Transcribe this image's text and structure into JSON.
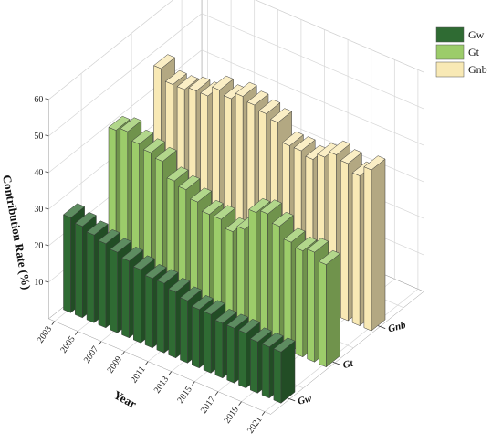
{
  "chart_data": {
    "type": "bar",
    "subtype": "3d-bar",
    "title": "",
    "ylabel": "Contribution Rate (%)",
    "xlabel": "Year",
    "zlabel": "",
    "ylim": [
      0,
      60
    ],
    "yticks": [
      10,
      20,
      30,
      40,
      50,
      60
    ],
    "xticks": [
      "2003",
      "2005",
      "2007",
      "2009",
      "2011",
      "2013",
      "2015",
      "2017",
      "2019",
      "2021"
    ],
    "categories": [
      "2003",
      "2004",
      "2005",
      "2006",
      "2007",
      "2008",
      "2009",
      "2010",
      "2011",
      "2012",
      "2013",
      "2014",
      "2015",
      "2016",
      "2017",
      "2018",
      "2019",
      "2020",
      "2021"
    ],
    "legend_position": "top-right",
    "grid": true,
    "series": [
      {
        "name": "Gw",
        "row_label": "Gw",
        "color": "#2f6b33",
        "values": [
          26,
          25,
          24,
          23,
          22,
          21,
          20,
          19,
          19,
          18,
          17,
          16,
          16,
          15,
          15,
          15,
          14,
          14,
          14
        ]
      },
      {
        "name": "Gt",
        "row_label": "Gt",
        "color": "#9ccc6a",
        "values": [
          40,
          41,
          39,
          38,
          37,
          33,
          32,
          30,
          28,
          28,
          26,
          28,
          34,
          35,
          33,
          30,
          29,
          30,
          28
        ]
      },
      {
        "name": "Gnb",
        "row_label": "Gnb",
        "color": "#f8e9b5",
        "values": [
          47,
          44,
          44,
          45,
          45,
          48,
          47,
          49,
          48,
          47,
          46,
          41,
          41,
          40,
          42,
          44,
          43,
          41,
          44
        ]
      }
    ]
  }
}
